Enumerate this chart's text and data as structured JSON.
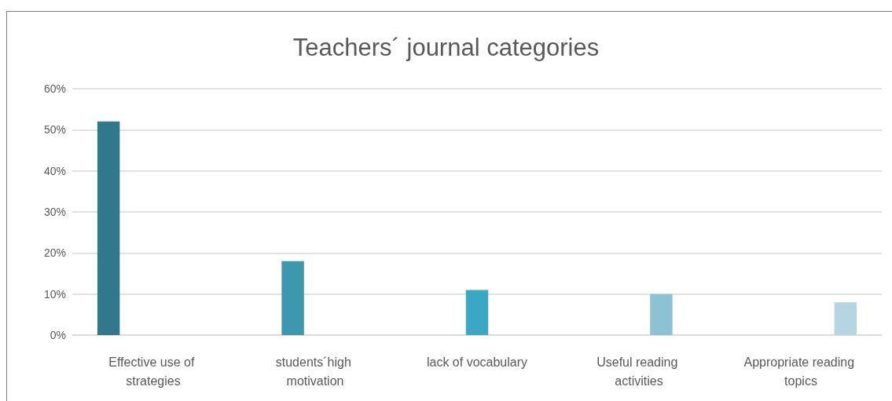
{
  "chart_data": {
    "type": "bar",
    "title": "Teachers´ journal categories",
    "categories": [
      "Effective use of strategies",
      "students´high motivation",
      "lack of vocabulary",
      "Useful reading activities",
      "Appropriate reading topics"
    ],
    "series": [
      {
        "color": "#31788c",
        "values": [
          52,
          null,
          null,
          null,
          null
        ]
      },
      {
        "color": "#3d97ad",
        "values": [
          null,
          18,
          null,
          null,
          null
        ]
      },
      {
        "color": "#3aa8c4",
        "values": [
          null,
          null,
          11,
          null,
          null
        ]
      },
      {
        "color": "#8dc1d4",
        "values": [
          null,
          null,
          null,
          10,
          null
        ]
      },
      {
        "color": "#b5d5e2",
        "values": [
          null,
          null,
          null,
          null,
          8
        ]
      }
    ],
    "ylim": [
      0,
      60
    ],
    "yticks": [
      {
        "value": 0,
        "label": "0%"
      },
      {
        "value": 10,
        "label": "10%"
      },
      {
        "value": 20,
        "label": "20%"
      },
      {
        "value": 30,
        "label": "30%"
      },
      {
        "value": 40,
        "label": "40%"
      },
      {
        "value": 50,
        "label": "50%"
      },
      {
        "value": 60,
        "label": "60%"
      }
    ],
    "grid": true
  }
}
